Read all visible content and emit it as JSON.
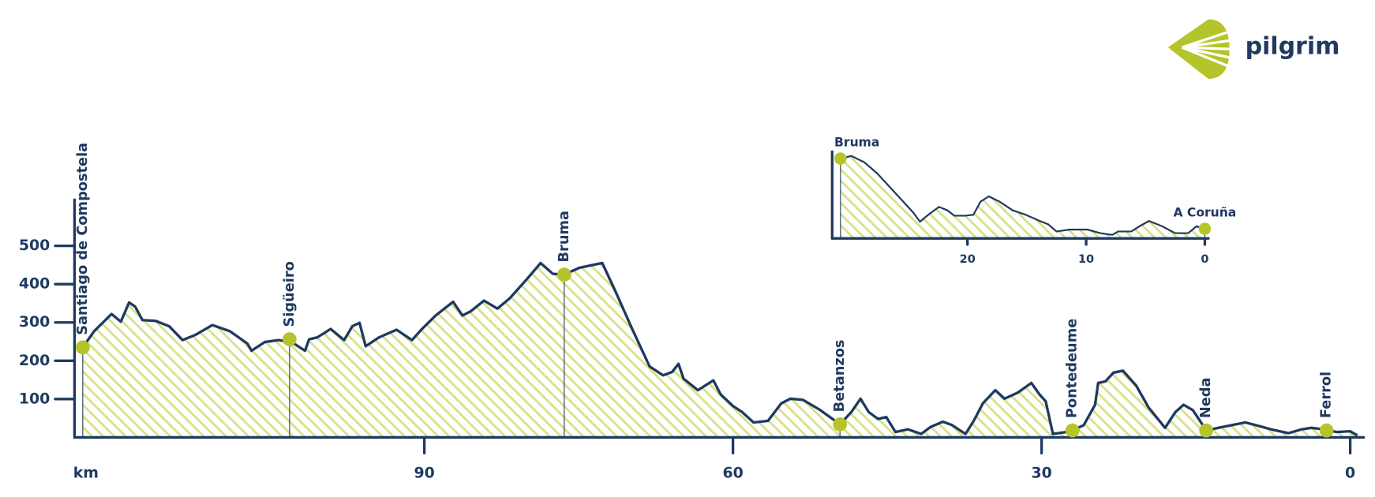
{
  "brand": "pilgrim",
  "chart_data": [
    {
      "type": "area",
      "x_label": "km",
      "xlim": [
        124,
        -1.3
      ],
      "ylim": [
        0,
        620
      ],
      "xticks": [
        90,
        60,
        30,
        0
      ],
      "yticks": [
        100,
        200,
        300,
        400,
        500
      ],
      "color": "#1f3a60",
      "x": [
        123.2,
        122.1,
        120.4,
        119.5,
        118.7,
        118.1,
        117.4,
        116.1,
        114.8,
        113.5,
        112.3,
        110.6,
        108.9,
        107.2,
        106.8,
        105.5,
        104.2,
        102.9,
        101.6,
        101.2,
        100.4,
        99.1,
        97.8,
        97.0,
        96.3,
        95.7,
        94.4,
        92.7,
        91.2,
        90.3,
        88.9,
        87.2,
        86.3,
        85.5,
        84.2,
        82.9,
        81.7,
        80.0,
        78.7,
        77.5,
        76.4,
        74.9,
        72.7,
        71.5,
        69.8,
        68.1,
        66.8,
        65.9,
        65.3,
        64.8,
        63.4,
        61.9,
        61.2,
        60.0,
        59.1,
        58.0,
        56.6,
        55.3,
        54.4,
        53.2,
        51.5,
        49.6,
        48.5,
        47.6,
        46.8,
        45.9,
        45.1,
        44.2,
        43.0,
        41.7,
        40.8,
        39.6,
        38.7,
        37.4,
        36.6,
        35.7,
        34.5,
        33.6,
        32.3,
        31.0,
        30.2,
        29.6,
        28.9,
        27.6,
        27.0,
        25.9,
        24.8,
        24.5,
        23.8,
        23.0,
        22.1,
        20.8,
        19.6,
        18.0,
        17.0,
        16.2,
        15.3,
        14.6,
        14.0,
        12.8,
        11.5,
        10.2,
        8.9,
        7.7,
        6.0,
        4.7,
        3.8,
        2.6,
        1.3,
        0,
        -0.7
      ],
      "values": [
        235,
        277,
        322,
        302,
        352,
        341,
        306,
        304,
        290,
        254,
        267,
        293,
        277,
        245,
        226,
        249,
        254,
        249,
        226,
        256,
        261,
        283,
        254,
        290,
        299,
        238,
        261,
        281,
        254,
        281,
        318,
        354,
        318,
        329,
        357,
        336,
        363,
        414,
        455,
        427,
        425,
        443,
        455,
        386,
        283,
        185,
        162,
        171,
        192,
        153,
        123,
        149,
        112,
        82,
        66,
        39,
        43,
        89,
        101,
        98,
        71,
        34,
        66,
        101,
        66,
        48,
        53,
        14,
        21,
        9,
        27,
        41,
        32,
        9,
        43,
        89,
        123,
        101,
        117,
        142,
        112,
        94,
        9,
        14,
        18,
        32,
        85,
        142,
        146,
        169,
        174,
        135,
        78,
        25,
        66,
        85,
        71,
        43,
        18,
        25,
        32,
        39,
        30,
        21,
        11,
        21,
        25,
        21,
        14,
        16,
        5
      ],
      "stops": [
        {
          "name": "Santiago de Compostela",
          "km": 123.2,
          "elevation": 235
        },
        {
          "name": "Sigüeiro",
          "km": 103.1,
          "elevation": 256
        },
        {
          "name": "Bruma",
          "km": 76.4,
          "elevation": 425
        },
        {
          "name": "Betanzos",
          "km": 49.6,
          "elevation": 34
        },
        {
          "name": "Pontedeume",
          "km": 27.0,
          "elevation": 18
        },
        {
          "name": "Neda",
          "km": 14.0,
          "elevation": 18
        },
        {
          "name": "Ferrol",
          "km": 2.3,
          "elevation": 18
        }
      ]
    },
    {
      "type": "area",
      "xlim": [
        31.4,
        -0.3
      ],
      "ylim": [
        0,
        462
      ],
      "xticks": [
        20,
        10,
        0
      ],
      "color": "#1f3a60",
      "x": [
        30.7,
        29.8,
        28.7,
        27.6,
        26.1,
        24.6,
        24.0,
        23.3,
        22.4,
        21.7,
        21.1,
        20.2,
        19.5,
        18.9,
        18.2,
        17.3,
        16.2,
        15.1,
        13.9,
        13.2,
        12.5,
        11.4,
        9.9,
        8.8,
        7.8,
        7.3,
        6.2,
        5.5,
        4.7,
        3.6,
        2.5,
        1.4,
        0.7,
        0
      ],
      "values": [
        425,
        439,
        406,
        346,
        243,
        140,
        89,
        126,
        168,
        150,
        121,
        121,
        126,
        196,
        224,
        196,
        150,
        126,
        93,
        75,
        37,
        47,
        47,
        28,
        19,
        37,
        37,
        65,
        93,
        65,
        28,
        28,
        65,
        51
      ],
      "stops": [
        {
          "name": "Bruma",
          "km": 30.7,
          "elevation": 425
        },
        {
          "name": "A Coruña",
          "km": 0,
          "elevation": 51
        }
      ]
    }
  ]
}
